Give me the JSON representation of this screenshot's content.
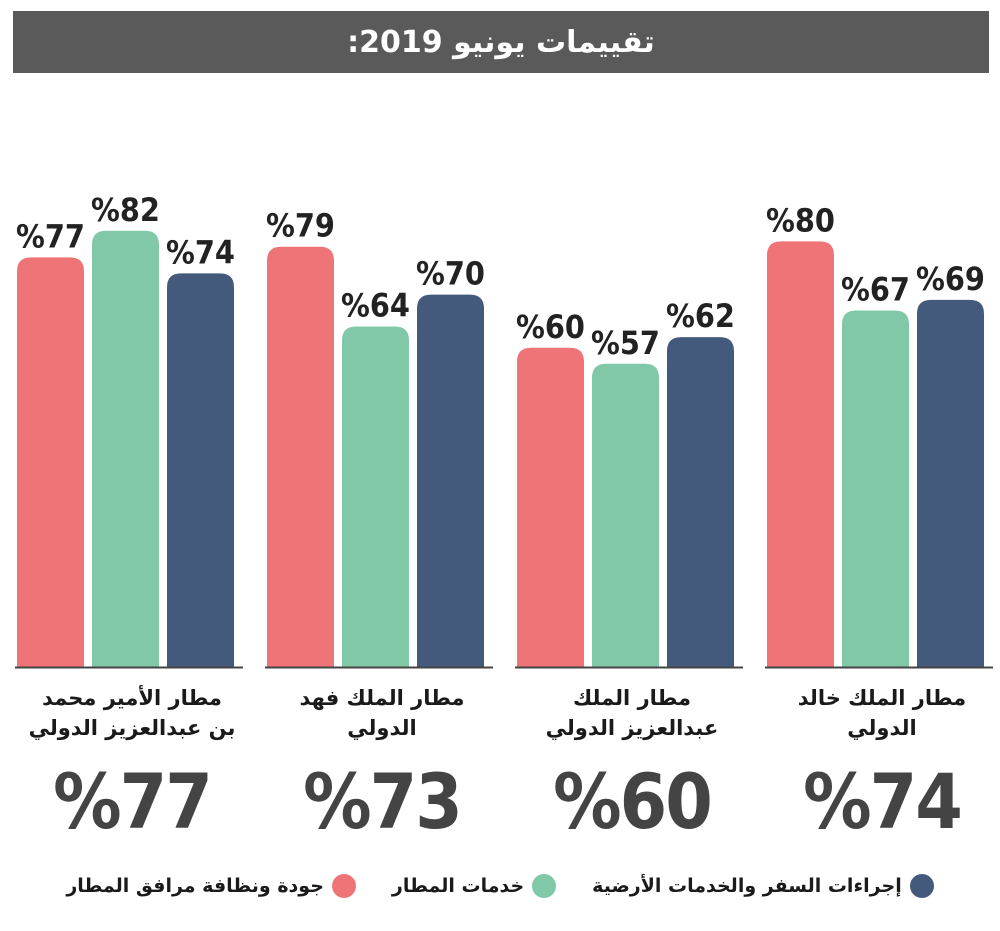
{
  "title": "تقييمات يونيو 2019:",
  "colors": {
    "quality": "#ef7477",
    "ground": "#80c8a8",
    "travel": "#445a7c",
    "title_bg": "#5a5a5a",
    "axis": "#444444"
  },
  "airports": [
    {
      "name_line1": "مطار الملك خالد",
      "name_line2": "الدولي",
      "overall": "74",
      "overall_suffix": "%"
    },
    {
      "name_line1": "مطار الملك",
      "name_line2": "عبدالعزيز الدولي",
      "overall": "60",
      "overall_suffix": "%"
    },
    {
      "name_line1": "مطار الملك فهد",
      "name_line2": "الدولي",
      "overall": "73",
      "overall_suffix": "%"
    },
    {
      "name_line1": "مطار الأمير محمد",
      "name_line2": "بن عبدالعزيز الدولي",
      "overall": "77",
      "overall_suffix": "%"
    }
  ],
  "legend": [
    {
      "label": "إجراءات السفر والخدمات الأرضية",
      "color": "#445a7c"
    },
    {
      "label": "خدمات المطار",
      "color": "#80c8a8"
    },
    {
      "label": "جودة ونظافة مرافق المطار",
      "color": "#ef7477"
    }
  ],
  "chart_data": {
    "type": "bar",
    "title": "تقييمات يونيو 2019:",
    "categories": [
      "مطار الملك خالد الدولي",
      "مطار الملك عبدالعزيز الدولي",
      "مطار الملك فهد الدولي",
      "مطار الأمير محمد بن عبدالعزيز الدولي"
    ],
    "series": [
      {
        "name": "جودة ونظافة مرافق المطار",
        "color": "#ef7477",
        "values": [
          80,
          60,
          79,
          77
        ],
        "labels": [
          "%80",
          "%60",
          "%79",
          "%77"
        ]
      },
      {
        "name": "خدمات المطار",
        "color": "#80c8a8",
        "values": [
          67,
          57,
          64,
          82
        ],
        "labels": [
          "%67",
          "%57",
          "%64",
          "%82"
        ]
      },
      {
        "name": "إجراءات السفر والخدمات الأرضية",
        "color": "#445a7c",
        "values": [
          69,
          62,
          70,
          74
        ],
        "labels": [
          "%69",
          "%62",
          "%70",
          "%74"
        ]
      }
    ],
    "overall": [
      74,
      60,
      73,
      77
    ],
    "ylim": [
      0,
      100
    ],
    "grid": false,
    "legend_position": "bottom",
    "xlabel": "",
    "ylabel": ""
  }
}
